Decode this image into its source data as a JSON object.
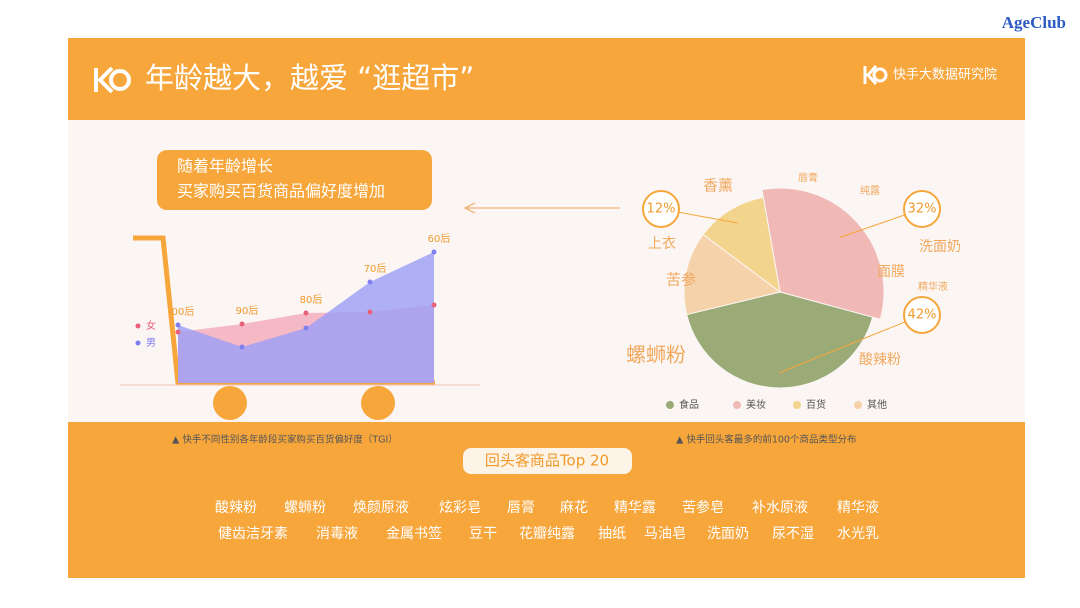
{
  "corner_logo": "AgeClub",
  "header": {
    "title": "年龄越大，越爱 “逛超市”",
    "brand": "快手大数据研究院"
  },
  "callout": [
    "随着年龄增长",
    "买家购买百货商品偏好度增加"
  ],
  "chart_data": [
    {
      "type": "area",
      "categories": [
        "00后",
        "90后",
        "80后",
        "70后",
        "60后"
      ],
      "series": [
        {
          "name": "女",
          "color": "#e8607a",
          "fill": "#f4b3c0",
          "values": [
            51,
            59,
            70,
            71,
            78
          ]
        },
        {
          "name": "男",
          "color": "#7f7ff0",
          "fill": "#9c9ef6",
          "values": [
            58,
            36,
            55,
            101,
            131
          ]
        }
      ]
    },
    {
      "type": "pie",
      "categories": [
        "食品",
        "美妆",
        "百货",
        "其他"
      ],
      "values": [
        42,
        32,
        12,
        14
      ],
      "value_labels": [
        "42%",
        "32%",
        "12%",
        null
      ],
      "colors": [
        "#9aab78",
        "#f0b9b6",
        "#f3d48c",
        "#f6d2ab"
      ],
      "annotations": [
        "香薰",
        "唇膏",
        "纯露",
        "上衣",
        "洗面奶",
        "面膜",
        "精华液",
        "苦参",
        "螺蛳粉",
        "酸辣粉"
      ]
    }
  ],
  "captions": [
    "▲  快手不同性别各年龄段买家购买百货偏好度（TGI）",
    "▲  快手回头客最多的前100个商品类型分布"
  ],
  "top20": {
    "title": "回头客商品Top 20",
    "items": [
      "酸辣粉",
      "螺蛳粉",
      "焕颜原液",
      "炫彩皂",
      "唇膏",
      "麻花",
      "精华露",
      "苦参皂",
      "补水原液",
      "精华液",
      "健齿洁牙素",
      "消毒液",
      "金属书签",
      "豆干",
      "花瓣纯露",
      "抽纸",
      "马油皂",
      "洗面奶",
      "尿不湿",
      "水光乳"
    ]
  }
}
